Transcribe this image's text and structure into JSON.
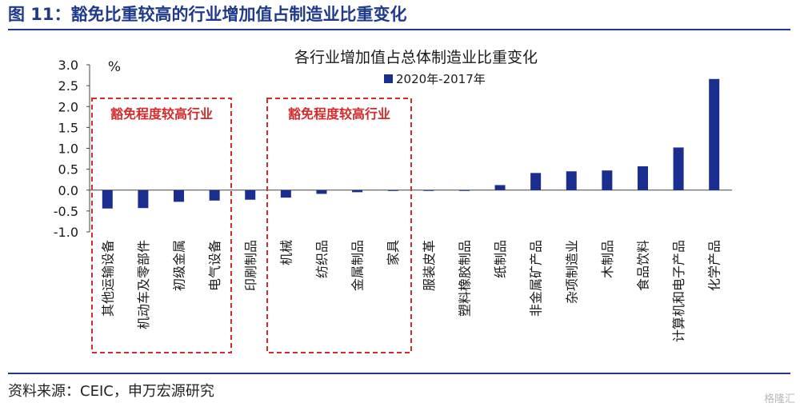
{
  "figure": {
    "title": "图 11：豁免比重较高的行业增加值占制造业比重变化",
    "source": "资料来源：CEIC，申万宏源研究",
    "watermark": "格隆汇"
  },
  "annotations": {
    "box1_label": "豁免程度较高行业",
    "box2_label": "豁免程度较高行业"
  },
  "colors": {
    "bar": "#1a2e8f",
    "title": "#1f3a8a",
    "box": "#d42a2a"
  },
  "chart_data": {
    "type": "bar",
    "title": "各行业增加值占总体制造业比重变化",
    "ylabel": "%",
    "ylim": [
      -1.0,
      3.0
    ],
    "yticks": [
      "3.0",
      "2.5",
      "2.0",
      "1.5",
      "1.0",
      "0.5",
      "0.0",
      "-0.5",
      "-1.0"
    ],
    "legend_position": "top-right",
    "series": [
      {
        "name": "2020年-2017年",
        "values": [
          -0.44,
          -0.43,
          -0.28,
          -0.25,
          -0.23,
          -0.18,
          -0.09,
          -0.05,
          -0.02,
          -0.01,
          0.0,
          0.12,
          0.41,
          0.45,
          0.47,
          0.57,
          1.02,
          2.66
        ]
      }
    ],
    "categories": [
      "其他运输设备",
      "机动车及零部件",
      "初级金属",
      "电气设备",
      "印刷制品",
      "机械",
      "纺织品",
      "金属制品",
      "家具",
      "服装皮革",
      "塑料橡胶制品",
      "纸制品",
      "非金属矿产品",
      "杂项制造业",
      "木制品",
      "食品饮料",
      "计算机和电子产品",
      "化学产品"
    ]
  }
}
